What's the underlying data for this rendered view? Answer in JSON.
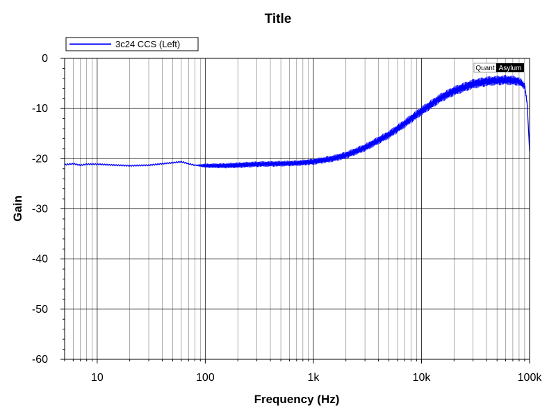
{
  "chart_data": {
    "type": "line",
    "title": "Title",
    "xlabel": "Frequency (Hz)",
    "ylabel": "Gain",
    "x_scale": "log",
    "xlim": [
      5,
      100000
    ],
    "ylim": [
      -60,
      0
    ],
    "x_ticks": [
      {
        "value": 10,
        "label": "10"
      },
      {
        "value": 100,
        "label": "100"
      },
      {
        "value": 1000,
        "label": "1k"
      },
      {
        "value": 10000,
        "label": "10k"
      },
      {
        "value": 100000,
        "label": "100k"
      }
    ],
    "y_ticks": [
      {
        "value": 0,
        "label": "0"
      },
      {
        "value": -10,
        "label": "-10"
      },
      {
        "value": -20,
        "label": "-20"
      },
      {
        "value": -30,
        "label": "-30"
      },
      {
        "value": -40,
        "label": "-40"
      },
      {
        "value": -50,
        "label": "-50"
      },
      {
        "value": -60,
        "label": "-60"
      }
    ],
    "grid": true,
    "legend_position": "top-left",
    "series": [
      {
        "name": "3c24 CCS (Left)",
        "color": "#0000ff",
        "x": [
          5,
          6,
          7,
          8,
          10,
          15,
          20,
          30,
          40,
          50,
          60,
          70,
          80,
          100,
          150,
          200,
          300,
          500,
          700,
          1000,
          1500,
          2000,
          3000,
          5000,
          7000,
          10000,
          15000,
          20000,
          30000,
          40000,
          50000,
          60000,
          70000,
          80000,
          90000,
          95000,
          100000
        ],
        "y": [
          -21.2,
          -21.0,
          -21.3,
          -21.1,
          -21.1,
          -21.3,
          -21.4,
          -21.3,
          -21.0,
          -20.8,
          -20.6,
          -21.0,
          -21.3,
          -21.4,
          -21.4,
          -21.3,
          -21.1,
          -21.0,
          -20.9,
          -20.6,
          -20.0,
          -19.3,
          -17.8,
          -15.2,
          -13.0,
          -10.5,
          -7.9,
          -6.5,
          -5.1,
          -4.6,
          -4.4,
          -4.3,
          -4.4,
          -4.6,
          -5.5,
          -9.0,
          -18.5
        ],
        "band_width": [
          0,
          0,
          0,
          0,
          0,
          0,
          0,
          0,
          0,
          0,
          0,
          0,
          0,
          0.7,
          0.9,
          1.0,
          1.0,
          1.0,
          1.0,
          1.1,
          1.2,
          1.3,
          1.4,
          1.5,
          1.6,
          1.7,
          1.7,
          1.8,
          1.8,
          1.8,
          1.8,
          1.8,
          1.8,
          1.6,
          1.2,
          0.6,
          0
        ]
      }
    ]
  },
  "watermark": {
    "left": "Quant",
    "right": "Asylum"
  }
}
